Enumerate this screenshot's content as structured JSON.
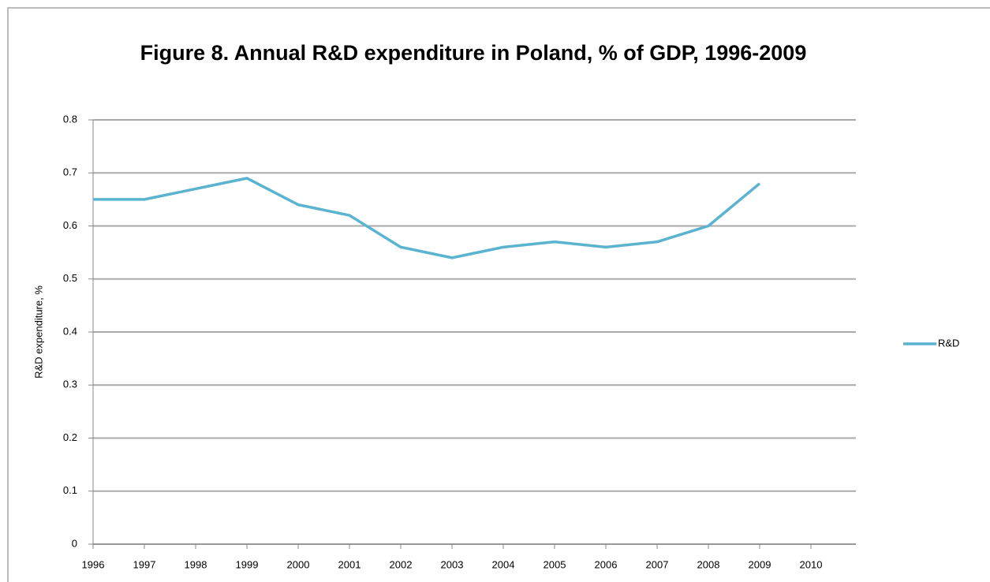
{
  "chart_data": {
    "type": "line",
    "title": "Figure 8. Annual R&D expenditure in Poland, % of GDP, 1996-2009",
    "y_label": "R&D expenditure, %",
    "categories": [
      "1996",
      "1997",
      "1998",
      "1999",
      "2000",
      "2001",
      "2002",
      "2003",
      "2004",
      "2005",
      "2006",
      "2007",
      "2008",
      "2009",
      "2010"
    ],
    "series": [
      {
        "name": "R&D",
        "color": "#5ab4d0",
        "values": [
          0.65,
          0.65,
          0.67,
          0.69,
          0.64,
          0.62,
          0.56,
          0.54,
          0.56,
          0.57,
          0.56,
          0.57,
          0.6,
          0.68,
          null
        ]
      }
    ],
    "ylim": [
      0,
      0.8
    ],
    "yticks": [
      0,
      0.1,
      0.2,
      0.3,
      0.4,
      0.5,
      0.6,
      0.7,
      0.8
    ],
    "grid": true,
    "legend": "right"
  }
}
